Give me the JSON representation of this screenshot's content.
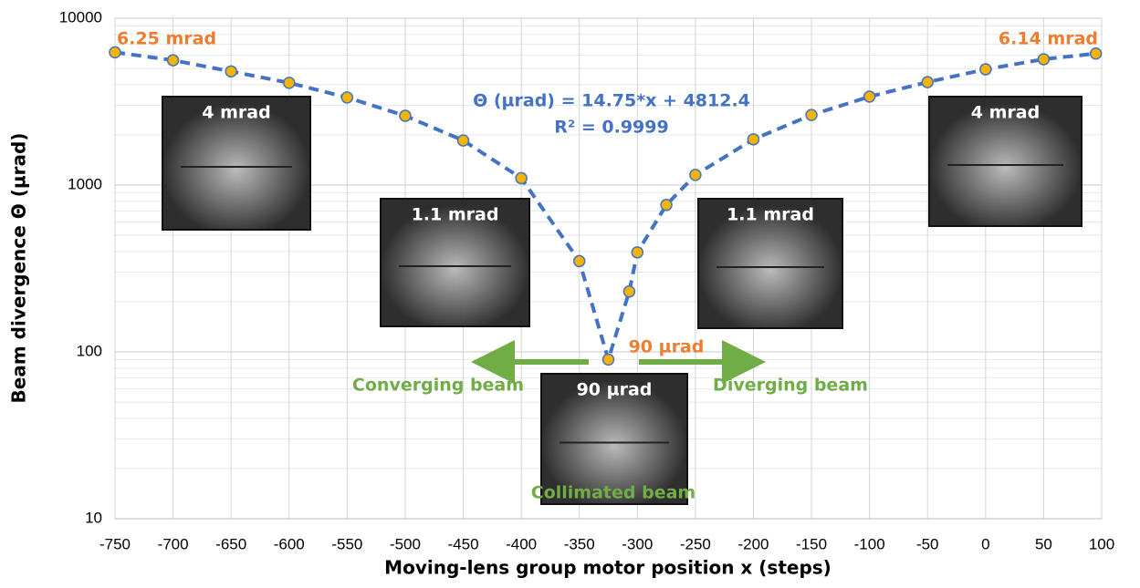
{
  "chart_data": {
    "type": "line",
    "x_label": "Moving-lens group motor position x (steps)",
    "y_label": "Beam divergence Θ (µrad)",
    "x": [
      -750,
      -700,
      -650,
      -600,
      -550,
      -500,
      -450,
      -400,
      -350,
      -325,
      -307,
      -300,
      -275,
      -250,
      -200,
      -150,
      -100,
      -50,
      0,
      50,
      95
    ],
    "series": [
      {
        "color": "#4472c4",
        "marker_color": "#f5b400",
        "values": [
          6250,
          5600,
          4800,
          4100,
          3350,
          2600,
          1850,
          1100,
          350,
          90,
          230,
          395,
          760,
          1150,
          1880,
          2630,
          3390,
          4140,
          4940,
          5680,
          6140
        ]
      }
    ],
    "xlim": [
      -750,
      100
    ],
    "xticks": [
      -750,
      -700,
      -650,
      -600,
      -550,
      -500,
      -450,
      -400,
      -350,
      -300,
      -250,
      -200,
      -150,
      -100,
      -50,
      0,
      50,
      100
    ],
    "ylim": [
      10,
      10000
    ],
    "yticks": [
      10,
      100,
      1000,
      10000
    ],
    "log_y": true,
    "grid": true,
    "annotations": [
      "6.25 mrad",
      "6.14 mrad",
      "Θ (µrad) = 14.75*x + 4812.4",
      "R² = 0.9999",
      "90 µrad",
      "Converging beam",
      "Diverging beam",
      "Collimated beam"
    ],
    "insets": [
      "4 mrad",
      "1.1 mrad",
      "90 µrad",
      "1.1 mrad",
      "4 mrad"
    ]
  }
}
